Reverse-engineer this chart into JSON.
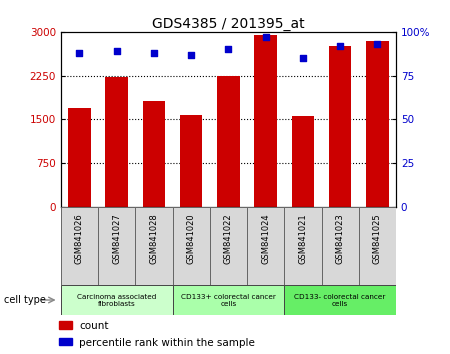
{
  "title": "GDS4385 / 201395_at",
  "samples": [
    "GSM841026",
    "GSM841027",
    "GSM841028",
    "GSM841020",
    "GSM841022",
    "GSM841024",
    "GSM841021",
    "GSM841023",
    "GSM841025"
  ],
  "counts": [
    1700,
    2220,
    1820,
    1580,
    2250,
    2950,
    1560,
    2750,
    2850
  ],
  "percentile_ranks": [
    88,
    89,
    88,
    87,
    90,
    97,
    85,
    92,
    93
  ],
  "ylim_left": [
    0,
    3000
  ],
  "ylim_right": [
    0,
    100
  ],
  "yticks_left": [
    0,
    750,
    1500,
    2250,
    3000
  ],
  "ytick_labels_left": [
    "0",
    "750",
    "1500",
    "2250",
    "3000"
  ],
  "yticks_right": [
    0,
    25,
    50,
    75,
    100
  ],
  "ytick_labels_right": [
    "0",
    "25",
    "50",
    "75",
    "100%"
  ],
  "bar_color": "#cc0000",
  "scatter_color": "#0000cc",
  "cell_types": [
    {
      "label": "Carcinoma associated\nfibroblasts",
      "start": 0,
      "end": 3,
      "color": "#ccffcc"
    },
    {
      "label": "CD133+ colorectal cancer\ncells",
      "start": 3,
      "end": 6,
      "color": "#aaffaa"
    },
    {
      "label": "CD133- colorectal cancer\ncells",
      "start": 6,
      "end": 9,
      "color": "#66ee66"
    }
  ],
  "cell_type_label": "cell type",
  "legend_count_label": "count",
  "legend_percentile_label": "percentile rank within the sample",
  "background_color": "#ffffff",
  "tick_label_color_left": "#cc0000",
  "tick_label_color_right": "#0000cc",
  "sample_box_color": "#d8d8d8"
}
